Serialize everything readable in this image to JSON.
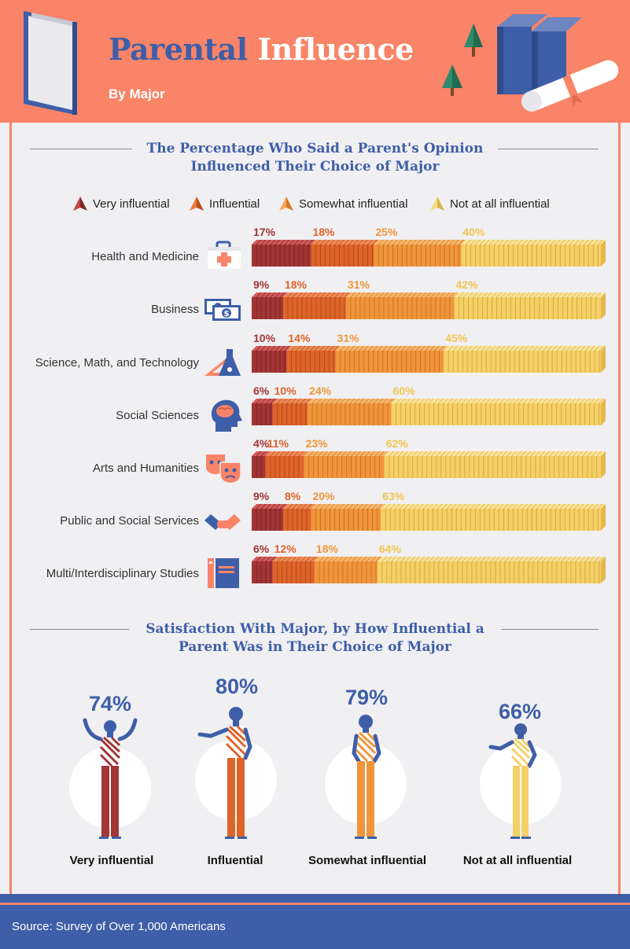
{
  "header": {
    "title_part1": "Parental",
    "title_part2": "Influence",
    "subtitle": "By Major"
  },
  "colors": {
    "very": "#a33535",
    "influential": "#de6429",
    "somewhat": "#f1953b",
    "not": "#f5d066",
    "blue": "#3e5ea8",
    "coral": "#f98467"
  },
  "section1": {
    "heading_line1": "The Percentage Who Said a Parent's Opinion",
    "heading_line2": "Influenced Their Choice of Major"
  },
  "section2": {
    "heading_line1": "Satisfaction With Major, by How Influential a",
    "heading_line2": "Parent Was in Their Choice of Major"
  },
  "chart_data": [
    {
      "type": "bar",
      "stacked": true,
      "orientation": "horizontal",
      "title": "The Percentage Who Said a Parent's Opinion Influenced Their Choice of Major",
      "legend": "top",
      "categories": [
        "Health and Medicine",
        "Business",
        "Science, Math, and Technology",
        "Social Sciences",
        "Arts and Humanities",
        "Public and Social Services",
        "Multi/Interdisciplinary Studies"
      ],
      "icons": [
        "first-aid-kit-icon",
        "money-icon",
        "ruler-flask-icon",
        "brain-head-icon",
        "theater-masks-icon",
        "handshake-icon",
        "books-icon"
      ],
      "series": [
        {
          "name": "Very influential",
          "values": [
            17,
            9,
            10,
            6,
            4,
            9,
            6
          ],
          "labels": [
            "17%",
            "9%",
            "10%",
            "6%",
            "4%",
            "9%",
            "6%"
          ]
        },
        {
          "name": "Influential",
          "values": [
            18,
            18,
            14,
            10,
            11,
            8,
            12
          ],
          "labels": [
            "18%",
            "18%",
            "14%",
            "10%",
            "11%",
            "8%",
            "12%"
          ]
        },
        {
          "name": "Somewhat influential",
          "values": [
            25,
            31,
            31,
            24,
            23,
            20,
            18
          ],
          "labels": [
            "25%",
            "31%",
            "31%",
            "24%",
            "23%",
            "20%",
            "18%"
          ]
        },
        {
          "name": "Not at all influential",
          "values": [
            40,
            42,
            45,
            60,
            62,
            63,
            64
          ],
          "labels": [
            "40%",
            "42%",
            "45%",
            "60%",
            "62%",
            "63%",
            "64%"
          ]
        }
      ]
    },
    {
      "type": "bar",
      "title": "Satisfaction With Major, by How Influential a Parent Was in Their Choice of Major",
      "categories": [
        "Very influential",
        "Influential",
        "Somewhat influential",
        "Not at all influential"
      ],
      "values": [
        74,
        80,
        79,
        66
      ],
      "labels": [
        "74%",
        "80%",
        "79%",
        "66%"
      ]
    }
  ],
  "source": "Source: Survey of Over 1,000 Americans"
}
